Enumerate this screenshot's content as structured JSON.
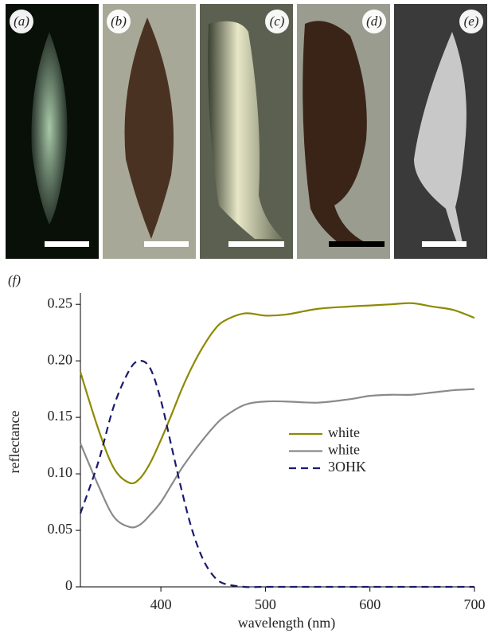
{
  "panels": [
    {
      "label": "(a)"
    },
    {
      "label": "(b)"
    },
    {
      "label": "(c)"
    },
    {
      "label": "(d)"
    },
    {
      "label": "(e)"
    }
  ],
  "chart_data": {
    "type": "line",
    "panel_label": "(f)",
    "x_label": "wavelength (nm)",
    "y_label": "reflectance",
    "x": [
      323,
      340,
      355,
      370,
      380,
      390,
      400,
      410,
      420,
      430,
      440,
      450,
      460,
      480,
      500,
      520,
      550,
      580,
      600,
      620,
      640,
      660,
      680,
      700
    ],
    "series": [
      {
        "name": "white",
        "color": "#8c8a00",
        "dash": false,
        "values": [
          0.19,
          0.14,
          0.105,
          0.092,
          0.096,
          0.11,
          0.13,
          0.152,
          0.175,
          0.195,
          0.212,
          0.226,
          0.235,
          0.242,
          0.24,
          0.241,
          0.246,
          0.248,
          0.249,
          0.25,
          0.251,
          0.248,
          0.245,
          0.238
        ]
      },
      {
        "name": "white",
        "color": "#8a8a8a",
        "dash": false,
        "values": [
          0.127,
          0.09,
          0.062,
          0.053,
          0.055,
          0.064,
          0.075,
          0.09,
          0.105,
          0.118,
          0.13,
          0.141,
          0.15,
          0.161,
          0.164,
          0.164,
          0.163,
          0.166,
          0.169,
          0.17,
          0.17,
          0.172,
          0.174,
          0.175
        ]
      },
      {
        "name": "3OHK",
        "color": "#1a1a6e",
        "dash": true,
        "values": [
          0.065,
          0.11,
          0.16,
          0.192,
          0.2,
          0.193,
          0.165,
          0.125,
          0.085,
          0.05,
          0.025,
          0.01,
          0.003,
          0,
          0,
          0,
          0,
          0,
          0,
          0,
          0,
          0,
          0,
          0
        ]
      }
    ],
    "xlim": [
      323,
      700
    ],
    "xticks": [
      400,
      500,
      600,
      700
    ],
    "ylim": [
      0,
      0.26
    ],
    "yticks": [
      0,
      0.05,
      {
        "value": 0.1,
        "label": "0.10"
      },
      0.15,
      {
        "value": 0.2,
        "label": "0.20"
      },
      0.25
    ],
    "legend": "center-right",
    "grid": false
  }
}
